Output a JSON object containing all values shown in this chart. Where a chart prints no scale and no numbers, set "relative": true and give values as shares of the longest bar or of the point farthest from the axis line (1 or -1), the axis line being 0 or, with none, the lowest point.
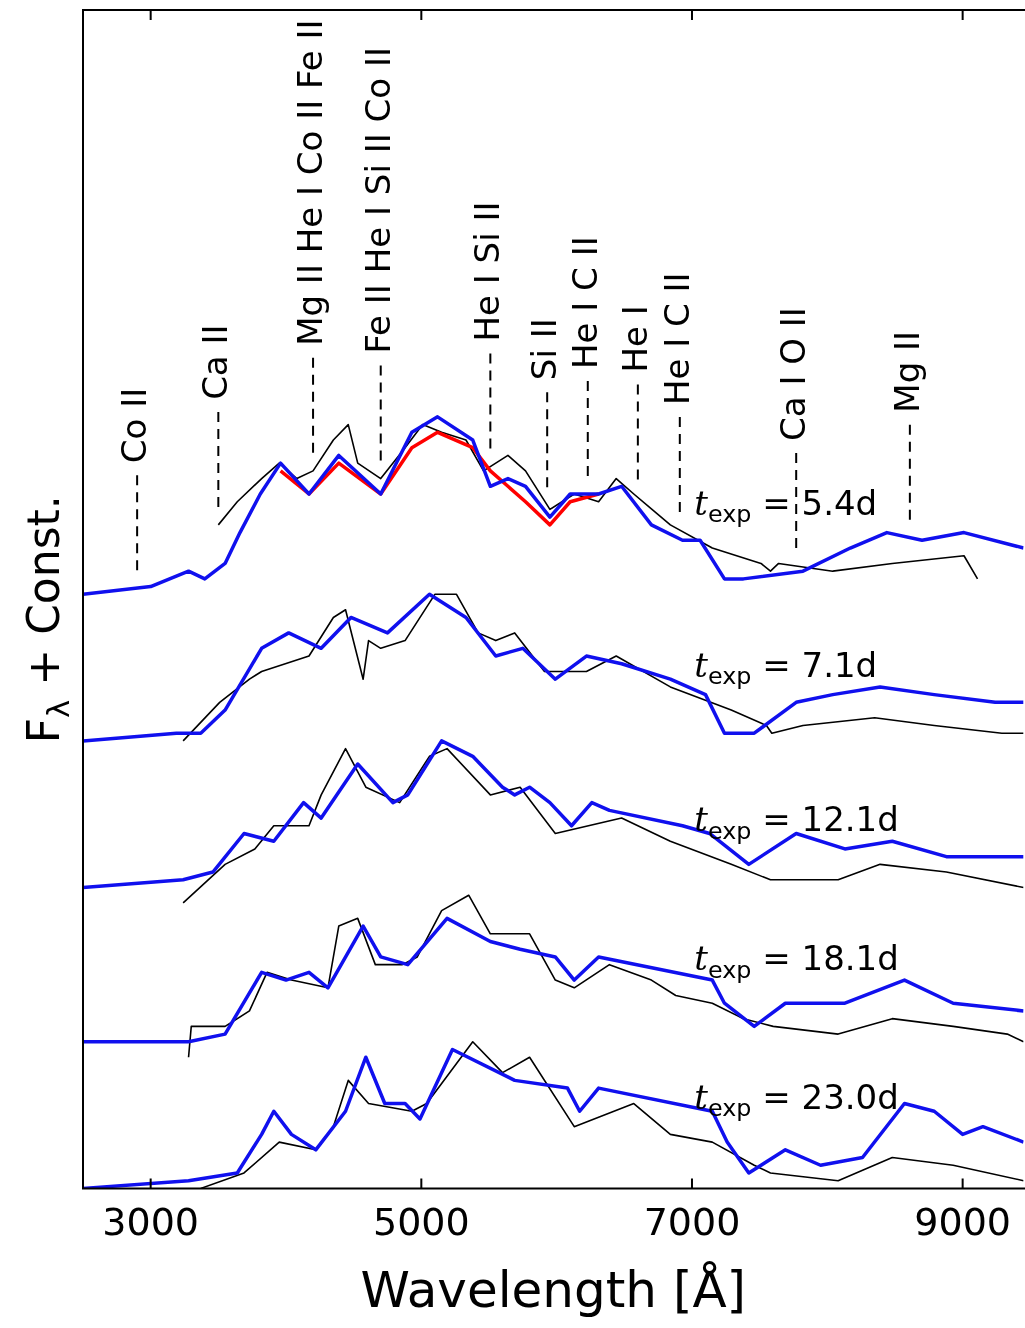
{
  "chart_data": {
    "type": "line",
    "relative": true,
    "xlabel": "Wavelength [Å]",
    "ylabel": "F$_{λ}$ + Const.",
    "xlim": [
      2500,
      9450
    ],
    "xticks": [
      3000,
      5000,
      7000,
      9000
    ],
    "series": [
      {
        "name": "t$_{exp}$ = 5.4d",
        "color": "#000000",
        "x": [
          3500,
          3640,
          3820,
          3950,
          4080,
          4200,
          4350,
          4460,
          4530,
          4700,
          4880,
          5010,
          5150,
          5330,
          5460,
          5640,
          5770,
          5950,
          6130,
          6310,
          6440,
          6570,
          6840,
          7150,
          7510,
          7580,
          7640,
          8040,
          8480,
          9010,
          9110
        ],
        "values": [
          0.86,
          0.89,
          0.92,
          0.94,
          0.92,
          0.93,
          0.97,
          0.99,
          0.94,
          0.92,
          0.96,
          0.99,
          0.98,
          0.97,
          0.93,
          0.95,
          0.93,
          0.88,
          0.9,
          0.89,
          0.92,
          0.9,
          0.86,
          0.83,
          0.81,
          0.8,
          0.81,
          0.8,
          0.81,
          0.82,
          0.79
        ]
      },
      {
        "color": "#ff0000",
        "x": [
          3960,
          4170,
          4390,
          4700,
          4930,
          5120,
          5380,
          5510,
          5640,
          5770,
          5950,
          6100,
          6310
        ],
        "values": [
          0.93,
          0.9,
          0.94,
          0.9,
          0.96,
          0.98,
          0.96,
          0.93,
          0.91,
          0.89,
          0.86,
          0.89,
          0.9
        ]
      },
      {
        "color": "#1010ee",
        "x": [
          2500,
          3000,
          3280,
          3400,
          3550,
          3660,
          3810,
          3960,
          4170,
          4390,
          4700,
          4930,
          5120,
          5380,
          5510,
          5640,
          5770,
          5950,
          6100,
          6310,
          6480,
          6700,
          6930,
          7060,
          7240,
          7380,
          7820,
          8170,
          8440,
          8700,
          9010,
          9450
        ],
        "values": [
          0.77,
          0.78,
          0.8,
          0.79,
          0.81,
          0.85,
          0.9,
          0.94,
          0.9,
          0.95,
          0.9,
          0.98,
          1,
          0.97,
          0.91,
          0.92,
          0.91,
          0.87,
          0.9,
          0.9,
          0.91,
          0.86,
          0.84,
          0.84,
          0.79,
          0.79,
          0.8,
          0.83,
          0.85,
          0.84,
          0.85,
          0.83
        ]
      },
      {
        "name": "t$_{exp}$ = 7.1d",
        "color": "#000000",
        "x": [
          3240,
          3510,
          3730,
          3820,
          4170,
          4350,
          4440,
          4570,
          4610,
          4700,
          4880,
          5100,
          5260,
          5420,
          5550,
          5690,
          5910,
          6220,
          6440,
          6840,
          7290,
          7550,
          7590,
          7820,
          8350,
          8790,
          9290,
          9450
        ],
        "values": [
          0.58,
          0.63,
          0.66,
          0.67,
          0.69,
          0.74,
          0.75,
          0.66,
          0.71,
          0.7,
          0.71,
          0.77,
          0.77,
          0.72,
          0.71,
          0.72,
          0.67,
          0.67,
          0.69,
          0.65,
          0.62,
          0.6,
          0.59,
          0.6,
          0.61,
          0.6,
          0.59,
          0.59
        ]
      },
      {
        "color": "#1010ee",
        "x": [
          2500,
          3190,
          3370,
          3550,
          3820,
          4020,
          4260,
          4480,
          4750,
          5060,
          5330,
          5550,
          5750,
          5990,
          6220,
          6480,
          6840,
          7100,
          7240,
          7460,
          7770,
          8040,
          8390,
          8790,
          9240,
          9450
        ],
        "values": [
          0.58,
          0.59,
          0.59,
          0.62,
          0.7,
          0.72,
          0.7,
          0.74,
          0.72,
          0.77,
          0.74,
          0.69,
          0.7,
          0.66,
          0.69,
          0.68,
          0.66,
          0.64,
          0.59,
          0.59,
          0.63,
          0.64,
          0.65,
          0.64,
          0.63,
          0.63
        ]
      },
      {
        "name": "t$_{exp}$ = 12.1d",
        "color": "#000000",
        "x": [
          3240,
          3550,
          3770,
          3910,
          4170,
          4260,
          4440,
          4590,
          4840,
          5060,
          5190,
          5510,
          5730,
          5990,
          6480,
          6840,
          7290,
          7580,
          8080,
          8390,
          8880,
          9450
        ],
        "values": [
          0.37,
          0.42,
          0.44,
          0.47,
          0.47,
          0.51,
          0.57,
          0.52,
          0.5,
          0.56,
          0.57,
          0.51,
          0.52,
          0.46,
          0.48,
          0.45,
          0.42,
          0.4,
          0.4,
          0.42,
          0.41,
          0.39
        ]
      },
      {
        "color": "#1010ee",
        "x": [
          2500,
          3240,
          3460,
          3690,
          3910,
          4130,
          4260,
          4530,
          4790,
          4900,
          5150,
          5380,
          5600,
          5690,
          5800,
          5950,
          6110,
          6260,
          6390,
          6930,
          7130,
          7420,
          7770,
          8130,
          8480,
          8880,
          9450
        ],
        "values": [
          0.39,
          0.4,
          0.41,
          0.46,
          0.45,
          0.5,
          0.48,
          0.55,
          0.5,
          0.51,
          0.58,
          0.56,
          0.52,
          0.51,
          0.52,
          0.5,
          0.47,
          0.5,
          0.49,
          0.47,
          0.46,
          0.42,
          0.46,
          0.44,
          0.45,
          0.43,
          0.43
        ]
      },
      {
        "name": "t$_{exp}$ = 18.1d",
        "color": "#000000",
        "x": [
          3280,
          3300,
          3550,
          3730,
          3860,
          4040,
          4310,
          4390,
          4530,
          4660,
          4860,
          4970,
          5150,
          5350,
          5510,
          5800,
          5990,
          6130,
          6390,
          6700,
          6880,
          7150,
          7380,
          7600,
          8080,
          8480,
          8930,
          9330,
          9450
        ],
        "values": [
          0.17,
          0.21,
          0.21,
          0.23,
          0.28,
          0.27,
          0.26,
          0.34,
          0.35,
          0.29,
          0.29,
          0.3,
          0.36,
          0.38,
          0.33,
          0.33,
          0.27,
          0.26,
          0.29,
          0.27,
          0.25,
          0.24,
          0.22,
          0.21,
          0.2,
          0.22,
          0.21,
          0.2,
          0.19
        ]
      },
      {
        "color": "#1010ee",
        "x": [
          2500,
          3280,
          3550,
          3820,
          4000,
          4170,
          4310,
          4570,
          4700,
          4900,
          5190,
          5510,
          5730,
          5990,
          6130,
          6310,
          7150,
          7240,
          7460,
          7690,
          8130,
          8570,
          8930,
          9450
        ],
        "values": [
          0.19,
          0.19,
          0.2,
          0.28,
          0.27,
          0.28,
          0.26,
          0.34,
          0.3,
          0.29,
          0.35,
          0.32,
          0.31,
          0.3,
          0.27,
          0.3,
          0.27,
          0.24,
          0.21,
          0.24,
          0.24,
          0.27,
          0.24,
          0.23
        ]
      },
      {
        "name": "t$_{exp}$ = 23.0d",
        "color": "#000000",
        "x": [
          3370,
          3690,
          3950,
          4220,
          4350,
          4460,
          4610,
          4930,
          5040,
          5380,
          5600,
          5800,
          6130,
          6570,
          6840,
          7150,
          7460,
          7580,
          8080,
          8480,
          8930,
          9450
        ],
        "values": [
          0,
          0.02,
          0.06,
          0.05,
          0.08,
          0.14,
          0.11,
          0.1,
          0.11,
          0.19,
          0.15,
          0.17,
          0.08,
          0.11,
          0.07,
          0.06,
          0.03,
          0.02,
          0.01,
          0.04,
          0.03,
          0.01
        ]
      },
      {
        "color": "#1010ee",
        "x": [
          2500,
          3280,
          3640,
          3820,
          3910,
          4040,
          4220,
          4440,
          4590,
          4730,
          4880,
          4990,
          5230,
          5690,
          6080,
          6170,
          6310,
          7150,
          7260,
          7420,
          7690,
          7950,
          8260,
          8570,
          8790,
          9000,
          9150,
          9450
        ],
        "values": [
          0,
          0.01,
          0.02,
          0.07,
          0.1,
          0.07,
          0.05,
          0.1,
          0.17,
          0.11,
          0.11,
          0.09,
          0.18,
          0.14,
          0.13,
          0.1,
          0.13,
          0.1,
          0.06,
          0.02,
          0.05,
          0.03,
          0.04,
          0.11,
          0.1,
          0.07,
          0.08,
          0.06
        ]
      }
    ],
    "ref_lines": [
      {
        "axis": "x",
        "value": 2900,
        "label": "Co II",
        "line_style": "dashed"
      },
      {
        "axis": "x",
        "value": 3500,
        "label": "Ca II",
        "line_style": "dashed"
      },
      {
        "axis": "x",
        "value": 4200,
        "label": "Mg II He I Co II Fe II",
        "line_style": "dashed"
      },
      {
        "axis": "x",
        "value": 4700,
        "label": "Fe II He I Si II Co II",
        "line_style": "dashed"
      },
      {
        "axis": "x",
        "value": 5510,
        "label": "He I Si II",
        "line_style": "dashed"
      },
      {
        "axis": "x",
        "value": 5930,
        "label": "Si II",
        "line_style": "dashed"
      },
      {
        "axis": "x",
        "value": 6230,
        "label": "He I C II",
        "line_style": "dashed"
      },
      {
        "axis": "x",
        "value": 6600,
        "label": "He I",
        "line_style": "dashed"
      },
      {
        "axis": "x",
        "value": 6910,
        "label": "He I C II",
        "line_style": "dashed"
      },
      {
        "axis": "x",
        "value": 7770,
        "label": "Ca I O II",
        "line_style": "dashed"
      },
      {
        "axis": "x",
        "value": 8610,
        "label": "Mg II",
        "line_style": "dashed"
      }
    ]
  }
}
